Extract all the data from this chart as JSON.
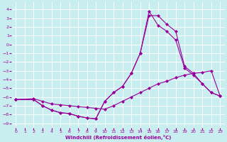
{
  "bg_color": "#c8eef0",
  "grid_color": "#ffffff",
  "line_color": "#990099",
  "marker_color": "#990099",
  "xlabel": "Windchill (Refroidissement éolien,°C)",
  "xlabel_color": "#990099",
  "ylabel_color": "#990099",
  "xlim": [
    -0.5,
    23.5
  ],
  "ylim": [
    -9.5,
    4.8
  ],
  "xticks": [
    0,
    1,
    2,
    3,
    4,
    5,
    6,
    7,
    8,
    9,
    10,
    11,
    12,
    13,
    14,
    15,
    16,
    17,
    18,
    19,
    20,
    21,
    22,
    23
  ],
  "yticks": [
    4,
    3,
    2,
    1,
    0,
    -1,
    -2,
    -3,
    -4,
    -5,
    -6,
    -7,
    -8,
    -9
  ],
  "line1_x": [
    0,
    2,
    3,
    4,
    5,
    6,
    7,
    8,
    9,
    10,
    11,
    12,
    13,
    14,
    15,
    16,
    17,
    18,
    19,
    20,
    21,
    22,
    23
  ],
  "line1_y": [
    -6.3,
    -6.2,
    -6.5,
    -6.8,
    -6.9,
    -7.0,
    -7.1,
    -7.2,
    -7.3,
    -7.4,
    -7.0,
    -6.5,
    -6.0,
    -5.5,
    -5.0,
    -4.5,
    -4.2,
    -3.8,
    -3.5,
    -3.3,
    -3.2,
    -3.0,
    -5.9
  ],
  "line2_x": [
    0,
    2,
    3,
    4,
    5,
    6,
    7,
    8,
    9,
    10,
    11,
    12,
    13,
    14,
    15,
    16,
    17,
    18,
    19,
    20,
    21,
    22,
    23
  ],
  "line2_y": [
    -6.3,
    -6.3,
    -7.0,
    -7.5,
    -7.8,
    -7.9,
    -8.2,
    -8.4,
    -8.5,
    -6.5,
    -5.5,
    -4.8,
    -3.3,
    -1.0,
    3.3,
    3.3,
    2.3,
    1.5,
    -2.5,
    -3.3,
    -4.5,
    -5.5,
    -5.9
  ],
  "line3_x": [
    0,
    2,
    3,
    4,
    5,
    6,
    7,
    8,
    9,
    10,
    11,
    12,
    13,
    14,
    15,
    16,
    17,
    18,
    19,
    20,
    21,
    22,
    23
  ],
  "line3_y": [
    -6.3,
    -6.3,
    -7.0,
    -7.5,
    -7.8,
    -7.9,
    -8.2,
    -8.4,
    -8.5,
    -6.5,
    -5.5,
    -4.8,
    -3.3,
    -1.0,
    3.8,
    2.2,
    1.5,
    0.5,
    -2.7,
    -3.5,
    -4.5,
    -5.5,
    -5.9
  ]
}
